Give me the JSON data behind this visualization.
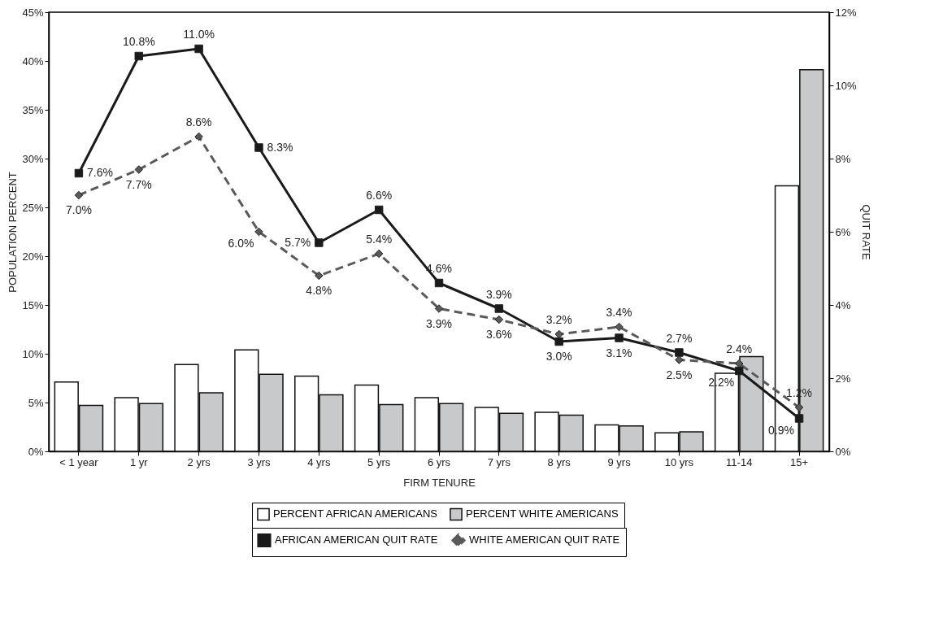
{
  "chart_data": {
    "type": "bar",
    "categories": [
      "< 1 year",
      "1 yr",
      "2 yrs",
      "3 yrs",
      "4 yrs",
      "5 yrs",
      "6 yrs",
      "7 yrs",
      "8 yrs",
      "9 yrs",
      "10 yrs",
      "11-14",
      "15+"
    ],
    "xlabel": "FIRM TENURE",
    "ylabel": "POPULATION PERCENT",
    "y2label": "QUIT RATE",
    "ylim": [
      0,
      45
    ],
    "yticks": [
      {
        "value": 0,
        "label": "0%"
      },
      {
        "value": 5,
        "label": "5%"
      },
      {
        "value": 10,
        "label": "10%"
      },
      {
        "value": 15,
        "label": "15%"
      },
      {
        "value": 20,
        "label": "20%"
      },
      {
        "value": 25,
        "label": "25%"
      },
      {
        "value": 30,
        "label": "30%"
      },
      {
        "value": 35,
        "label": "35%"
      },
      {
        "value": 40,
        "label": "40%"
      },
      {
        "value": 45,
        "label": "45%"
      }
    ],
    "y2lim": [
      0,
      12
    ],
    "y2ticks": [
      {
        "value": 0,
        "label": "0%"
      },
      {
        "value": 2,
        "label": "2%"
      },
      {
        "value": 4,
        "label": "4%"
      },
      {
        "value": 6,
        "label": "6%"
      },
      {
        "value": 8,
        "label": "8%"
      },
      {
        "value": 10,
        "label": "10%"
      },
      {
        "value": 12,
        "label": "12%"
      }
    ],
    "grid": false,
    "legend": "bottom",
    "series": [
      {
        "name": "PERCENT AFRICAN AMERICANS",
        "color": "#ffffff",
        "values": [
          7.1,
          5.5,
          8.9,
          10.4,
          7.7,
          6.8,
          5.5,
          4.5,
          4.0,
          2.7,
          1.9,
          8.0,
          27.2
        ]
      },
      {
        "name": "PERCENT WHITE AMERICANS",
        "color": "#c8c9cb",
        "values": [
          4.7,
          4.9,
          6.0,
          7.9,
          5.8,
          4.8,
          4.9,
          3.9,
          3.7,
          2.6,
          2.0,
          9.7,
          39.1
        ]
      },
      {
        "name": "AFRICAN AMERICAN QUIT RATE",
        "type": "line",
        "axis": "y2",
        "color": "#1a1a1a",
        "marker": "square",
        "line_style": "solid",
        "values": [
          7.6,
          10.8,
          11.0,
          8.3,
          5.7,
          6.6,
          4.6,
          3.9,
          3.0,
          3.1,
          2.7,
          2.2,
          0.9
        ],
        "value_labels": [
          "7.6%",
          "10.8%",
          "11.0%",
          "8.3%",
          "5.7%",
          "6.6%",
          "4.6%",
          "3.9%",
          "3.0%",
          "3.1%",
          "2.7%",
          "2.2%",
          "0.9%"
        ]
      },
      {
        "name": "WHITE AMERICAN QUIT RATE",
        "type": "line",
        "axis": "y2",
        "color": "#5a5a5a",
        "marker": "diamond",
        "line_style": "dashed",
        "values": [
          7.0,
          7.7,
          8.6,
          6.0,
          4.8,
          5.4,
          3.9,
          3.6,
          3.2,
          3.4,
          2.5,
          2.4,
          1.2
        ],
        "value_labels": [
          "7.0%",
          "7.7%",
          "8.6%",
          "6.0%",
          "4.8%",
          "5.4%",
          "3.9%",
          "3.6%",
          "3.2%",
          "3.4%",
          "2.5%",
          "2.4%",
          "1.2%"
        ]
      }
    ]
  }
}
